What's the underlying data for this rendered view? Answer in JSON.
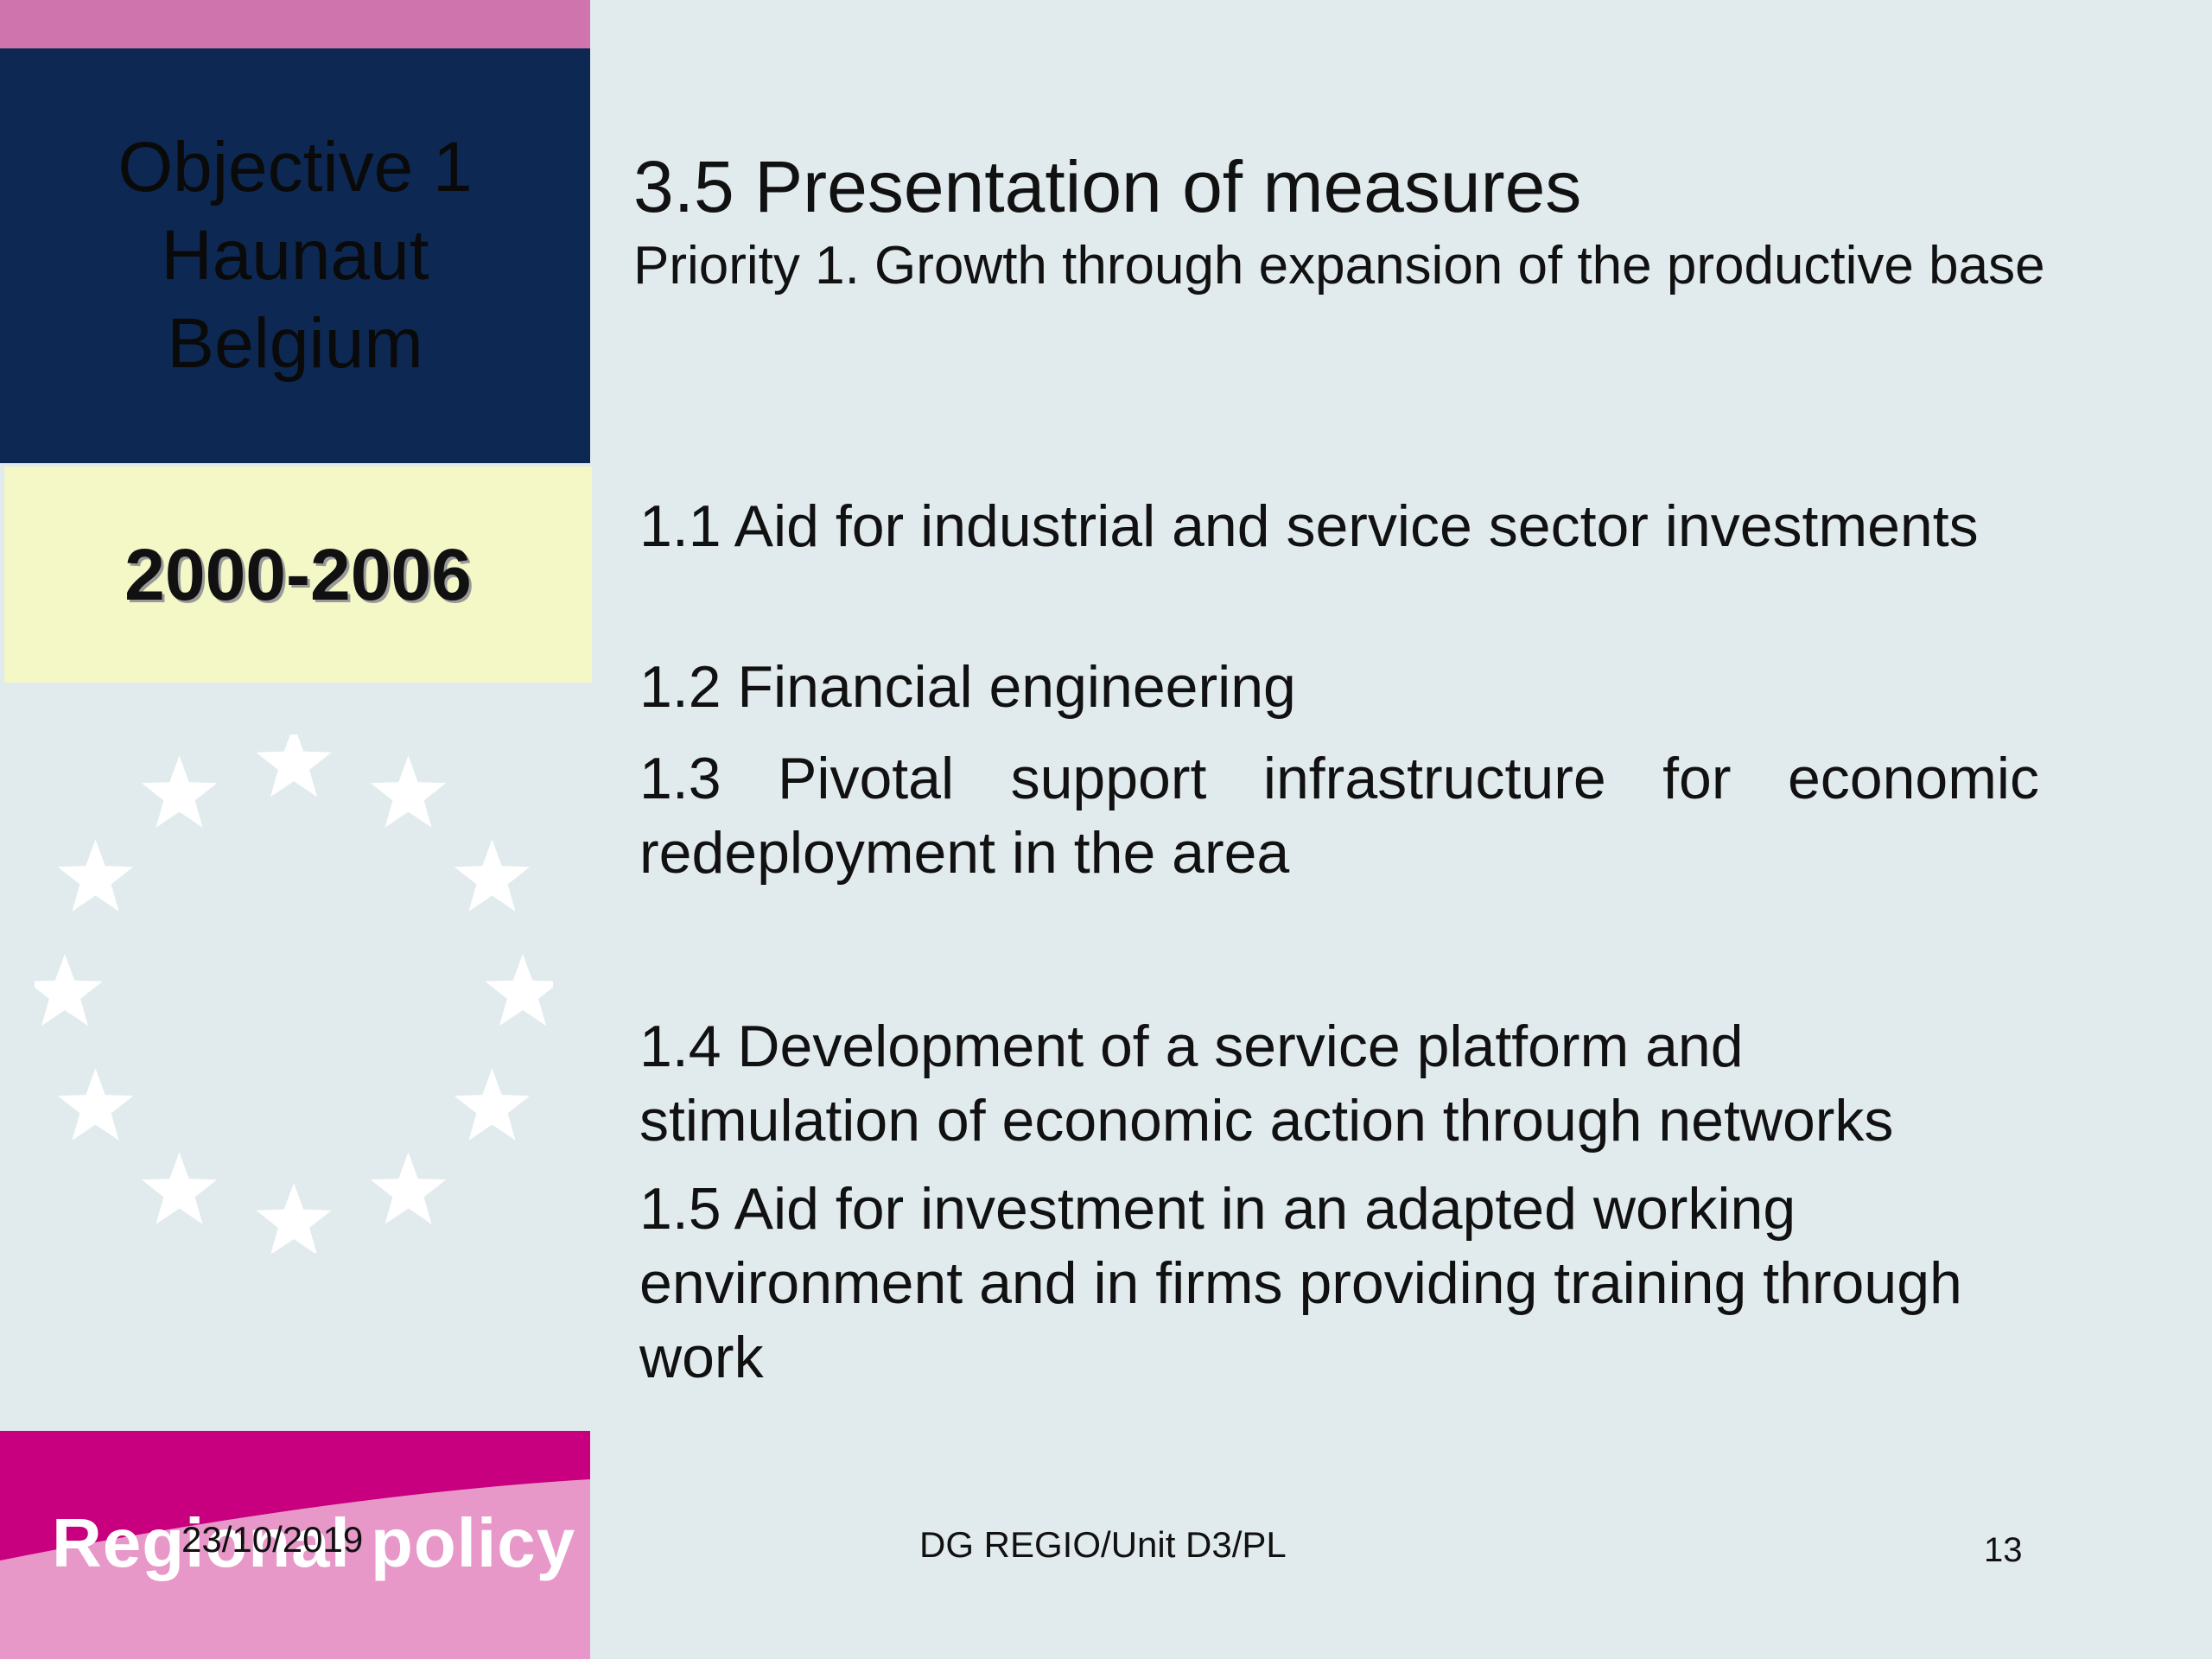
{
  "sidebar": {
    "header_lines": [
      "Objective 1",
      "Haunaut",
      "Belgium"
    ],
    "years": "2000-2006",
    "logo_text": "Regional policy",
    "colors": {
      "pink_strip": "#cf74ad",
      "navy": "#0d2852",
      "yellow": "#f4f7c6",
      "magenta": "#c8007f",
      "light_pink": "#e898c8"
    },
    "emblem": "eu-stars-icon"
  },
  "slide": {
    "title": "3.5 Presentation of measures",
    "subtitle": "Priority 1.  Growth through expansion of the productive base",
    "measures": [
      "1.1 Aid for industrial and service sector investments",
      "1.2 Financial engineering",
      "1.3 Pivotal support infrastructure for economic redeployment in the area",
      "1.4 Development of a service platform and stimulation of economic action through networks",
      "1.5 Aid for investment in an adapted working environment and in firms providing training through work"
    ]
  },
  "footer": {
    "date": "23/10/2019",
    "unit": "DG REGIO/Unit D3/PL",
    "page_number": "13"
  }
}
